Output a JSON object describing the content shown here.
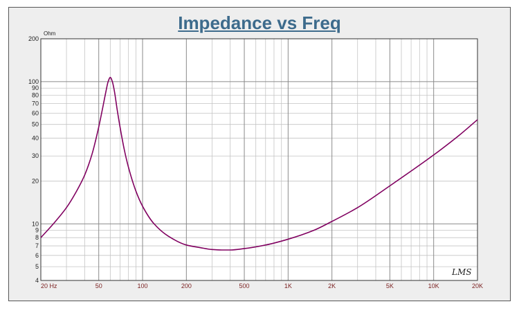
{
  "title": "Impedance vs Freq",
  "watermark": "LMS",
  "chart_data": {
    "type": "line",
    "title": "Impedance vs Freq",
    "ylabel": "Ohm",
    "xlabel": "",
    "x_scale": "log",
    "y_scale": "log",
    "xlim": [
      20,
      20000
    ],
    "ylim": [
      4,
      200
    ],
    "grid": true,
    "series_color": "#800060",
    "x_ticks": [
      {
        "value": 20,
        "label": "20  Hz"
      },
      {
        "value": 50,
        "label": "50"
      },
      {
        "value": 100,
        "label": "100"
      },
      {
        "value": 200,
        "label": "200"
      },
      {
        "value": 500,
        "label": "500"
      },
      {
        "value": 1000,
        "label": "1K"
      },
      {
        "value": 2000,
        "label": "2K"
      },
      {
        "value": 5000,
        "label": "5K"
      },
      {
        "value": 10000,
        "label": "10K"
      },
      {
        "value": 20000,
        "label": "20K"
      }
    ],
    "y_ticks": [
      {
        "value": 4,
        "label": "4"
      },
      {
        "value": 5,
        "label": "5"
      },
      {
        "value": 6,
        "label": "6"
      },
      {
        "value": 7,
        "label": "7"
      },
      {
        "value": 8,
        "label": "8"
      },
      {
        "value": 9,
        "label": "9"
      },
      {
        "value": 10,
        "label": "10"
      },
      {
        "value": 20,
        "label": "20"
      },
      {
        "value": 30,
        "label": "30"
      },
      {
        "value": 40,
        "label": "40"
      },
      {
        "value": 50,
        "label": "50"
      },
      {
        "value": 60,
        "label": "60"
      },
      {
        "value": 70,
        "label": "70"
      },
      {
        "value": 80,
        "label": "80"
      },
      {
        "value": 90,
        "label": "90"
      },
      {
        "value": 100,
        "label": "100"
      },
      {
        "value": 200,
        "label": "200"
      }
    ],
    "series": [
      {
        "x": [
          20,
          25,
          30,
          35,
          40,
          45,
          50,
          53,
          56,
          58,
          60,
          62,
          64,
          67,
          70,
          75,
          80,
          90,
          100,
          120,
          150,
          200,
          250,
          300,
          350,
          400,
          500,
          700,
          1000,
          1500,
          2000,
          3000,
          5000,
          7000,
          10000,
          15000,
          20000
        ],
        "y": [
          8.0,
          10.3,
          13.0,
          16.8,
          22.0,
          31.0,
          48.0,
          64.0,
          85.0,
          100.0,
          107.0,
          100.0,
          86.0,
          63.0,
          48.0,
          33.0,
          25.0,
          17.0,
          13.3,
          10.0,
          8.2,
          7.1,
          6.8,
          6.6,
          6.55,
          6.55,
          6.7,
          7.1,
          7.8,
          9.0,
          10.4,
          13.0,
          18.5,
          23.5,
          30.5,
          42.0,
          54.0
        ]
      }
    ]
  }
}
